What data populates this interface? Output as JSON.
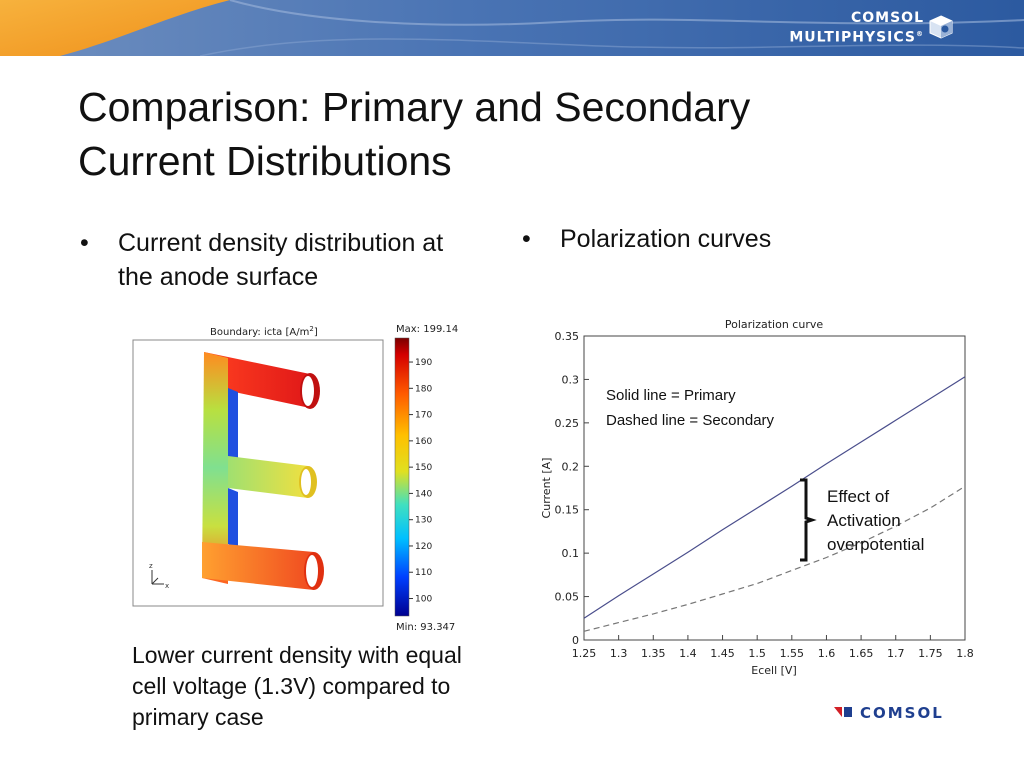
{
  "banner": {
    "brand_line1": "COMSOL",
    "brand_line2": "MULTIPHYSICS",
    "registered": "®"
  },
  "slide": {
    "title_line1": "Comparison: Primary and Secondary",
    "title_line2": "Current Distributions",
    "bullet_left_line1": "Current density distribution at",
    "bullet_left_line2": "the anode surface",
    "bullet_right": "Polarization curves",
    "bullet_symbol": "•",
    "caption_line1": "Lower current density with equal",
    "caption_line2": "cell voltage (1.3V) compared to",
    "caption_line3": "primary case"
  },
  "surface_plot": {
    "header": "Boundary: icta [A/m",
    "header_sup": "2",
    "header_end": "]",
    "max_label": "Max: 199.148",
    "min_label": "Min: 93.347",
    "colorbar_ticks": [
      "190",
      "180",
      "170",
      "160",
      "150",
      "140",
      "130",
      "120",
      "110",
      "100"
    ],
    "axis_z": "z",
    "axis_x": "x"
  },
  "chart_data": {
    "type": "line",
    "title": "Polarization curve",
    "xlabel": "Ecell [V]",
    "ylabel": "Current [A]",
    "xlim": [
      1.25,
      1.8
    ],
    "ylim": [
      0,
      0.35
    ],
    "xticks": [
      "1.25",
      "1.3",
      "1.35",
      "1.4",
      "1.45",
      "1.5",
      "1.55",
      "1.6",
      "1.65",
      "1.7",
      "1.75",
      "1.8"
    ],
    "yticks": [
      "0",
      "0.05",
      "0.1",
      "0.15",
      "0.2",
      "0.25",
      "0.3",
      "0.35"
    ],
    "grid": false,
    "series": [
      {
        "x": [
          1.25,
          1.3,
          1.35,
          1.4,
          1.45,
          1.5,
          1.55,
          1.6,
          1.65,
          1.7,
          1.75,
          1.8
        ],
        "values": [
          0.025,
          0.051,
          0.076,
          0.101,
          0.127,
          0.152,
          0.177,
          0.203,
          0.228,
          0.253,
          0.278,
          0.303
        ],
        "style": "solid",
        "color": "#4a4e8c"
      },
      {
        "x": [
          1.25,
          1.3,
          1.35,
          1.4,
          1.45,
          1.5,
          1.55,
          1.6,
          1.65,
          1.7,
          1.75,
          1.8
        ],
        "values": [
          0.01,
          0.02,
          0.03,
          0.041,
          0.053,
          0.065,
          0.08,
          0.095,
          0.112,
          0.131,
          0.152,
          0.177
        ],
        "style": "dashed",
        "color": "#777777"
      }
    ],
    "legend_note_line1": "Solid line = Primary",
    "legend_note_line2": "Dashed line = Secondary",
    "annotation_line1": "Effect of",
    "annotation_line2": "Activation",
    "annotation_line3": "overpotential"
  },
  "footer": {
    "logo_text": "COMSOL"
  },
  "colors": {
    "banner_blue": "#2f5fa5",
    "banner_orange": "#f39a1e",
    "brand_red": "#d22027",
    "brand_blue": "#1f3f8f"
  }
}
